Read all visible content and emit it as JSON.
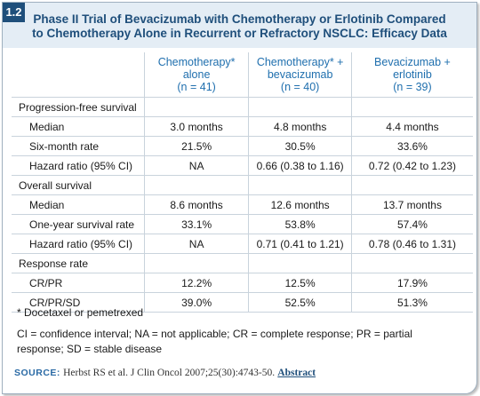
{
  "badge": "1.2",
  "title_line1": "Phase II Trial of Bevacizumab with Chemotherapy or Erlotinib Compared",
  "title_line2": "to Chemotherapy Alone in Recurrent or Refractory NSCLC: Efficacy Data",
  "columns": [
    {
      "l1": "Chemotherapy*",
      "l2": "alone",
      "l3": "(n = 41)"
    },
    {
      "l1": "Chemotherapy* +",
      "l2": "bevacizumab",
      "l3": "(n = 40)"
    },
    {
      "l1": "Bevacizumab +",
      "l2": "erlotinib",
      "l3": "(n = 39)"
    }
  ],
  "sections": [
    {
      "label": "Progression-free survival",
      "rows": [
        {
          "label": "Median",
          "values": [
            "3.0 months",
            "4.8 months",
            "4.4 months"
          ]
        },
        {
          "label": "Six-month rate",
          "values": [
            "21.5%",
            "30.5%",
            "33.6%"
          ]
        },
        {
          "label": "Hazard ratio (95% CI)",
          "values": [
            "NA",
            "0.66 (0.38 to 1.16)",
            "0.72 (0.42 to 1.23)"
          ]
        }
      ]
    },
    {
      "label": "Overall survival",
      "rows": [
        {
          "label": "Median",
          "values": [
            "8.6 months",
            "12.6 months",
            "13.7 months"
          ]
        },
        {
          "label": "One-year survival rate",
          "values": [
            "33.1%",
            "53.8%",
            "57.4%"
          ]
        },
        {
          "label": "Hazard ratio (95% CI)",
          "values": [
            "NA",
            "0.71 (0.41 to 1.21)",
            "0.78 (0.46 to 1.31)"
          ]
        }
      ]
    },
    {
      "label": "Response rate",
      "rows": [
        {
          "label": "CR/PR",
          "values": [
            "12.2%",
            "12.5%",
            "17.9%"
          ]
        },
        {
          "label": "CR/PR/SD",
          "values": [
            "39.0%",
            "52.5%",
            "51.3%"
          ]
        }
      ]
    }
  ],
  "footnote_asterisk": "* Docetaxel or pemetrexed",
  "footnote_abbrev": "CI = confidence interval; NA = not applicable; CR = complete response; PR = partial response; SD = stable disease",
  "source_label": "SOURCE:",
  "source_text": "Herbst RS et al. J Clin Oncol 2007;25(30):4743-50.",
  "source_link": "Abstract",
  "colors": {
    "header_bg": "#e4edf5",
    "title": "#1f4f7b",
    "column_head": "#1f6fae",
    "grid": "#c9d3dc"
  }
}
